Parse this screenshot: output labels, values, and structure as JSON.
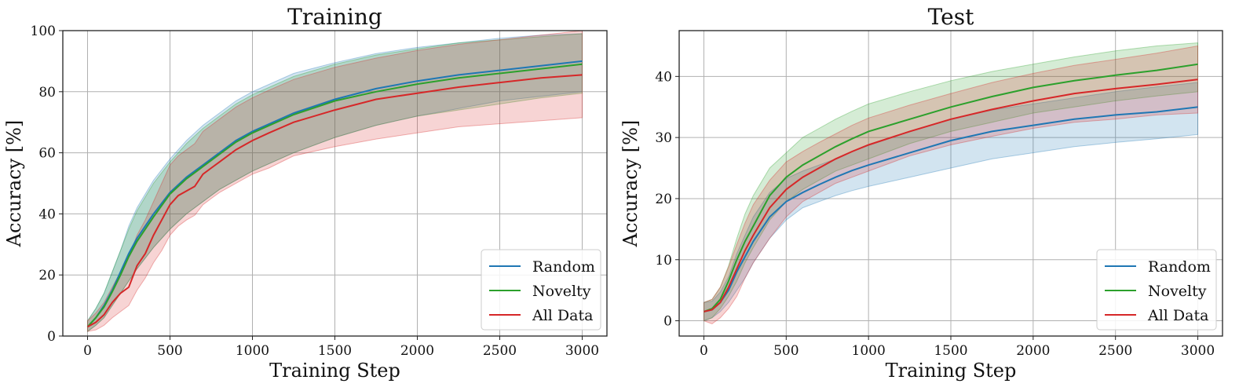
{
  "chart_data": [
    {
      "type": "line",
      "title": "Training",
      "xlabel": "Training Step",
      "ylabel": "Accuracy [%]",
      "xlim": [
        -150,
        3150
      ],
      "ylim": [
        0,
        100
      ],
      "xticks": [
        0,
        500,
        1000,
        1500,
        2000,
        2500,
        3000
      ],
      "yticks": [
        0,
        20,
        40,
        60,
        80,
        100
      ],
      "grid": true,
      "legend_position": "bottom-right",
      "series": [
        {
          "name": "Random",
          "color": "#1f77b4",
          "x": [
            0,
            50,
            100,
            150,
            200,
            250,
            300,
            400,
            500,
            600,
            700,
            800,
            900,
            1000,
            1250,
            1500,
            1750,
            2000,
            2250,
            2500,
            2750,
            3000
          ],
          "mean": [
            3,
            6,
            10,
            15,
            21,
            27,
            32,
            40,
            47,
            52,
            56,
            60,
            64,
            67,
            73,
            77.5,
            81,
            83.5,
            85.5,
            87,
            88.5,
            90
          ],
          "lower": [
            1.5,
            3.5,
            6,
            10,
            14,
            18,
            22,
            29,
            35,
            40,
            44,
            48,
            51,
            54,
            60,
            65,
            69,
            72,
            74.5,
            77,
            78.5,
            80
          ],
          "upper": [
            5,
            9,
            14,
            21,
            28,
            36,
            42,
            51,
            58,
            64,
            69,
            73,
            77,
            80,
            86,
            89.5,
            92.5,
            94.5,
            96,
            97.5,
            98.5,
            99
          ]
        },
        {
          "name": "Novelty",
          "color": "#2ca02c",
          "x": [
            0,
            50,
            100,
            150,
            200,
            250,
            300,
            400,
            500,
            600,
            700,
            800,
            900,
            1000,
            1250,
            1500,
            1750,
            2000,
            2250,
            2500,
            2750,
            3000
          ],
          "mean": [
            3,
            6,
            9.5,
            14.5,
            20,
            26,
            31,
            39,
            46.5,
            51.5,
            55.5,
            59.5,
            63.5,
            66.5,
            72.5,
            77,
            80,
            82.5,
            84.5,
            86,
            87.5,
            89
          ],
          "lower": [
            1.5,
            3.5,
            6,
            10,
            14,
            18,
            22,
            29,
            35,
            40,
            44,
            48,
            51,
            54,
            60,
            65,
            69,
            72,
            74,
            76,
            78,
            79.5
          ],
          "upper": [
            5,
            9,
            14,
            21,
            28,
            35,
            41,
            50,
            57,
            63,
            68,
            72,
            76,
            79,
            85,
            89,
            92,
            94,
            96,
            97,
            98,
            99
          ]
        },
        {
          "name": "All Data",
          "color": "#d62728",
          "x": [
            0,
            50,
            100,
            150,
            200,
            250,
            300,
            350,
            400,
            450,
            500,
            550,
            600,
            650,
            700,
            750,
            800,
            900,
            1000,
            1100,
            1250,
            1500,
            1750,
            2000,
            2250,
            2500,
            2750,
            3000
          ],
          "mean": [
            3,
            4.5,
            7,
            11,
            14,
            16,
            23,
            27,
            33,
            38,
            43,
            46,
            47.5,
            49,
            53,
            55,
            57,
            61,
            64,
            66.5,
            70,
            74,
            77.5,
            79.5,
            81.5,
            83,
            84.5,
            85.5
          ],
          "lower": [
            1.5,
            2,
            3.5,
            6,
            8,
            10,
            15,
            19,
            24,
            28,
            33,
            36,
            38,
            39.5,
            43,
            45,
            47,
            50,
            53,
            55,
            59,
            62,
            64.5,
            66.5,
            68.5,
            69.5,
            70.5,
            71.5
          ],
          "upper": [
            5,
            7.5,
            11,
            16,
            21,
            26,
            33,
            38,
            44,
            50,
            56,
            59,
            61,
            63,
            67,
            69,
            71,
            75,
            78,
            80.5,
            84,
            88,
            91,
            93.5,
            95.5,
            97,
            98.5,
            100
          ]
        }
      ]
    },
    {
      "type": "line",
      "title": "Test",
      "xlabel": "Training Step",
      "ylabel": "Accuracy [%]",
      "xlim": [
        -150,
        3150
      ],
      "ylim": [
        -2.5,
        47.5
      ],
      "xticks": [
        0,
        500,
        1000,
        1500,
        2000,
        2500,
        3000
      ],
      "yticks": [
        0,
        10,
        20,
        30,
        40
      ],
      "grid": true,
      "legend_position": "bottom-right",
      "series": [
        {
          "name": "Random",
          "color": "#1f77b4",
          "x": [
            0,
            50,
            100,
            150,
            200,
            250,
            300,
            400,
            500,
            600,
            700,
            800,
            900,
            1000,
            1250,
            1500,
            1750,
            2000,
            2250,
            2500,
            2750,
            3000
          ],
          "mean": [
            1.5,
            1.8,
            3,
            5,
            8,
            10.5,
            13,
            17,
            19.5,
            21,
            22.3,
            23.5,
            24.6,
            25.5,
            27.5,
            29.5,
            31,
            32,
            33,
            33.7,
            34.2,
            35
          ],
          "lower": [
            0,
            0.5,
            1.5,
            3,
            5,
            7,
            9.5,
            13.5,
            16.5,
            18.5,
            19.5,
            20.5,
            21.3,
            22,
            23.5,
            25,
            26.5,
            27.5,
            28.5,
            29.2,
            29.8,
            30.5
          ],
          "upper": [
            3,
            3.2,
            4.7,
            7.2,
            11,
            14,
            17,
            21,
            23.3,
            24.5,
            25.5,
            26.5,
            27.7,
            28.7,
            31,
            33,
            34.5,
            35.5,
            36.5,
            37.5,
            38.3,
            39
          ]
        },
        {
          "name": "Novelty",
          "color": "#2ca02c",
          "x": [
            0,
            50,
            100,
            150,
            200,
            250,
            300,
            400,
            500,
            600,
            700,
            800,
            900,
            1000,
            1250,
            1500,
            1750,
            2000,
            2250,
            2500,
            2750,
            3000
          ],
          "mean": [
            1.5,
            2,
            3.5,
            6.5,
            10,
            13,
            15.5,
            20.5,
            23.5,
            25.5,
            27,
            28.5,
            29.8,
            31,
            33,
            35,
            36.7,
            38.2,
            39.3,
            40.2,
            41,
            42
          ],
          "lower": [
            0,
            0.5,
            2,
            4,
            6.5,
            9.5,
            12,
            16.5,
            19.5,
            21.5,
            23,
            24.5,
            25.5,
            26.5,
            29,
            31,
            32.5,
            34,
            35,
            36,
            36.8,
            37.5
          ],
          "upper": [
            3,
            3.5,
            5.5,
            9,
            13.5,
            17.5,
            20.5,
            25,
            27.5,
            30,
            31.5,
            33,
            34.3,
            35.5,
            37.5,
            39.3,
            40.8,
            42,
            43.2,
            44.2,
            45,
            45.5
          ]
        },
        {
          "name": "All Data",
          "color": "#d62728",
          "x": [
            0,
            50,
            100,
            150,
            200,
            250,
            300,
            400,
            500,
            600,
            700,
            800,
            900,
            1000,
            1250,
            1500,
            1750,
            2000,
            2250,
            2500,
            2750,
            3000
          ],
          "mean": [
            1.5,
            1.8,
            3,
            5.5,
            8.5,
            11.5,
            14,
            18.5,
            21.5,
            23.5,
            25,
            26.5,
            27.7,
            28.8,
            31,
            33,
            34.6,
            36,
            37.2,
            38,
            38.7,
            39.5
          ],
          "lower": [
            0,
            -0.5,
            0.5,
            2,
            4,
            7,
            9.5,
            13.5,
            17,
            19.5,
            21,
            22.5,
            23.5,
            24.5,
            27,
            28.8,
            30.2,
            31.5,
            32.5,
            33,
            33.7,
            34
          ],
          "upper": [
            3,
            3.5,
            5.5,
            8.8,
            12.5,
            16,
            19,
            23,
            26,
            27.7,
            29.2,
            30.6,
            32,
            33.2,
            35.3,
            37.2,
            39,
            40.5,
            41.8,
            42.8,
            43.8,
            45
          ]
        }
      ]
    }
  ]
}
